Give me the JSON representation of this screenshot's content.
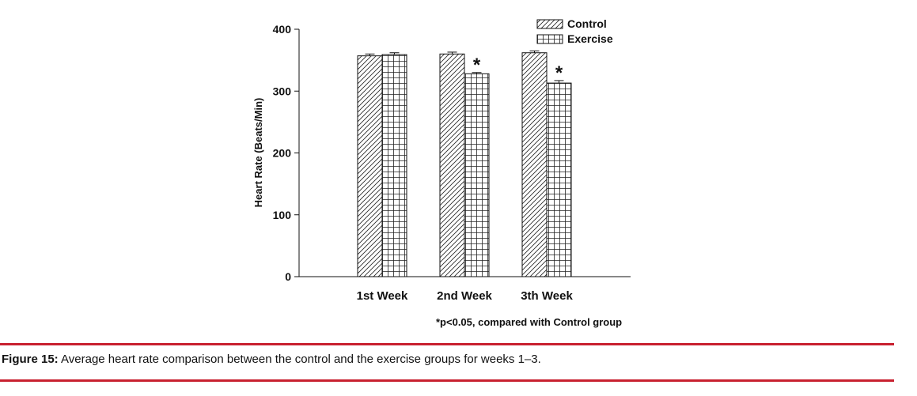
{
  "chart_data": {
    "type": "bar",
    "categories": [
      "1st Week",
      "2nd Week",
      "3th Week"
    ],
    "series": [
      {
        "name": "Control",
        "values": [
          357,
          360,
          362
        ],
        "errors": [
          3,
          3,
          3
        ],
        "pattern": "diagonal-hatch"
      },
      {
        "name": "Exercise",
        "values": [
          359,
          328,
          313
        ],
        "errors": [
          3,
          2,
          4
        ],
        "pattern": "grid-hatch"
      }
    ],
    "significance_markers": [
      {
        "category": "2nd Week",
        "series": "Exercise",
        "symbol": "*"
      },
      {
        "category": "3th Week",
        "series": "Exercise",
        "symbol": "*"
      }
    ],
    "title": "",
    "xlabel": "",
    "ylabel": "Heart Rate (Beats/Min)",
    "ylim": [
      0,
      400
    ],
    "yticks": [
      "0",
      "100",
      "200",
      "300",
      "400"
    ],
    "legend_position": "top-right",
    "grid": false,
    "footnote": "*p<0.05, compared with Control group"
  },
  "caption": {
    "label": "Figure 15:",
    "text": " Average heart rate comparison between the control and the exercise groups for weeks 1–3."
  }
}
